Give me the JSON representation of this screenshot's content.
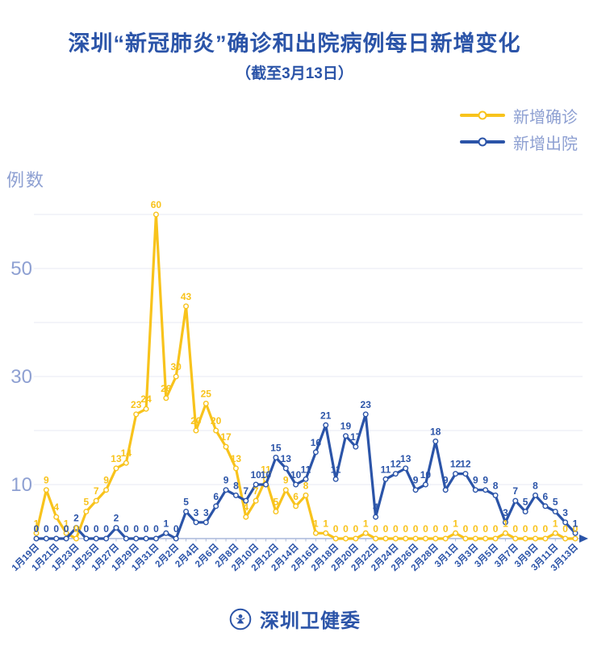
{
  "header": {
    "title": "深圳“新冠肺炎”确诊和出院病例每日新增变化",
    "subtitle": "（截至3月13日）"
  },
  "legend": {
    "items": [
      {
        "key": "confirmed",
        "label": "新增确诊",
        "color": "#f8c31c"
      },
      {
        "key": "discharged",
        "label": "新增出院",
        "color": "#2b54a8"
      }
    ]
  },
  "footer": {
    "org": "深圳卫健委"
  },
  "colors": {
    "accent_blue": "#2b54a8",
    "accent_yellow": "#f8c31c",
    "axis_text": "#8ea0d2",
    "gridline": "#e7eaf3",
    "axis_line": "#aab8dc"
  },
  "chart_data": {
    "type": "line",
    "title": "深圳“新冠肺炎”确诊和出院病例每日新增变化（截至3月13日）",
    "xlabel": "",
    "ylabel": "例数",
    "ylim": [
      0,
      63
    ],
    "grid": true,
    "legend_position": "top-right",
    "y_ticks": [
      10,
      30,
      50
    ],
    "grid_values": [
      10,
      20,
      30,
      40,
      50,
      60
    ],
    "x_label_every": 2,
    "x": [
      "1月19日",
      "1月20日",
      "1月21日",
      "1月22日",
      "1月23日",
      "1月24日",
      "1月25日",
      "1月26日",
      "1月27日",
      "1月28日",
      "1月29日",
      "1月30日",
      "1月31日",
      "2月1日",
      "2月2日",
      "2月3日",
      "2月4日",
      "2月5日",
      "2月6日",
      "2月7日",
      "2月8日",
      "2月9日",
      "2月10日",
      "2月11日",
      "2月12日",
      "2月13日",
      "2月14日",
      "2月15日",
      "2月16日",
      "2月17日",
      "2月18日",
      "2月19日",
      "2月20日",
      "2月21日",
      "2月22日",
      "2月23日",
      "2月24日",
      "2月25日",
      "2月26日",
      "2月27日",
      "2月28日",
      "2月29日",
      "3月1日",
      "3月2日",
      "3月3日",
      "3月4日",
      "3月5日",
      "3月6日",
      "3月7日",
      "3月8日",
      "3月9日",
      "3月10日",
      "3月11日",
      "3月12日",
      "3月13日"
    ],
    "series": [
      {
        "key": "confirmed",
        "name": "新增确诊",
        "color": "#f8c31c",
        "values": [
          1,
          9,
          4,
          1,
          0,
          5,
          7,
          9,
          13,
          14,
          23,
          24,
          60,
          26,
          30,
          43,
          20,
          25,
          20,
          17,
          13,
          4,
          7,
          11,
          5,
          9,
          6,
          8,
          1,
          1,
          0,
          0,
          0,
          1,
          0,
          0,
          0,
          0,
          0,
          0,
          0,
          0,
          1,
          0,
          0,
          0,
          0,
          1,
          0,
          0,
          0,
          0,
          1,
          0,
          0
        ]
      },
      {
        "key": "discharged",
        "name": "新增出院",
        "color": "#2b54a8",
        "values": [
          0,
          0,
          0,
          0,
          2,
          0,
          0,
          0,
          2,
          0,
          0,
          0,
          0,
          1,
          0,
          5,
          3,
          3,
          6,
          9,
          8,
          7,
          10,
          10,
          15,
          13,
          10,
          11,
          16,
          21,
          11,
          19,
          17,
          23,
          4,
          11,
          12,
          13,
          9,
          10,
          18,
          9,
          12,
          12,
          9,
          9,
          8,
          3,
          7,
          5,
          8,
          6,
          5,
          3,
          1
        ]
      }
    ]
  }
}
